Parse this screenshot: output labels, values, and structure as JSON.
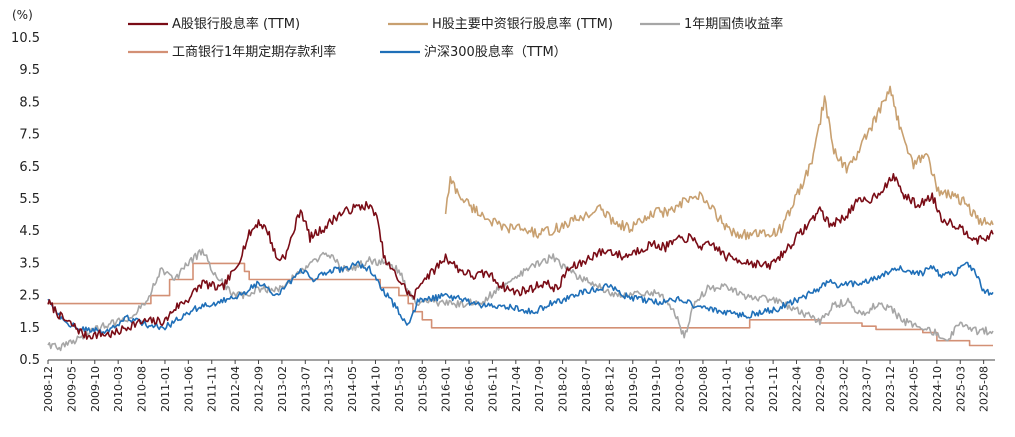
{
  "chart_data": {
    "type": "line",
    "unit_label": "(%)",
    "y_ticks": [
      "0.5",
      "1.5",
      "2.5",
      "3.5",
      "4.5",
      "5.5",
      "6.5",
      "7.5",
      "8.5",
      "9.5",
      "10.5"
    ],
    "ylim": [
      0.5,
      10.5
    ],
    "x_tick_labels": [
      "2008-12",
      "2009-05",
      "2009-10",
      "2010-03",
      "2010-08",
      "2011-01",
      "2011-06",
      "2011-11",
      "2012-04",
      "2012-09",
      "2013-02",
      "2013-07",
      "2013-12",
      "2014-05",
      "2014-10",
      "2015-03",
      "2015-08",
      "2016-01",
      "2016-06",
      "2016-11",
      "2017-04",
      "2017-09",
      "2018-02",
      "2018-07",
      "2018-12",
      "2019-05",
      "2019-10",
      "2020-03",
      "2020-08",
      "2021-01",
      "2021-06",
      "2021-11",
      "2022-04",
      "2022-09",
      "2023-02",
      "2023-07",
      "2023-12",
      "2024-05",
      "2024-10",
      "2025-03",
      "2025-08"
    ],
    "xlim": [
      "2008-12",
      "2025-10"
    ],
    "grid": false,
    "legend_position": "top",
    "series": [
      {
        "name": "A股银行股息率 (TTM)",
        "color": "#7a0c16",
        "points": [
          [
            "2008-12",
            2.3
          ],
          [
            "2009-03",
            1.8
          ],
          [
            "2009-06",
            1.5
          ],
          [
            "2009-08",
            1.25
          ],
          [
            "2009-11",
            1.3
          ],
          [
            "2010-02",
            1.3
          ],
          [
            "2010-06",
            1.6
          ],
          [
            "2010-09",
            1.7
          ],
          [
            "2011-01",
            1.7
          ],
          [
            "2011-03",
            2.1
          ],
          [
            "2011-06",
            2.4
          ],
          [
            "2011-09",
            2.9
          ],
          [
            "2012-01",
            2.7
          ],
          [
            "2012-04",
            3.3
          ],
          [
            "2012-07",
            4.4
          ],
          [
            "2012-09",
            4.8
          ],
          [
            "2012-11",
            4.5
          ],
          [
            "2013-01",
            3.6
          ],
          [
            "2013-03",
            3.8
          ],
          [
            "2013-06",
            5.2
          ],
          [
            "2013-08",
            4.3
          ],
          [
            "2013-11",
            4.6
          ],
          [
            "2014-02",
            5.0
          ],
          [
            "2014-05",
            5.2
          ],
          [
            "2014-08",
            5.3
          ],
          [
            "2014-10",
            5.1
          ],
          [
            "2014-12",
            3.6
          ],
          [
            "2015-03",
            3.0
          ],
          [
            "2015-06",
            2.4
          ],
          [
            "2015-08",
            3.0
          ],
          [
            "2015-10",
            3.2
          ],
          [
            "2016-01",
            3.7
          ],
          [
            "2016-04",
            3.3
          ],
          [
            "2016-07",
            3.1
          ],
          [
            "2016-10",
            3.2
          ],
          [
            "2017-01",
            2.8
          ],
          [
            "2017-04",
            2.6
          ],
          [
            "2017-07",
            2.7
          ],
          [
            "2017-10",
            2.9
          ],
          [
            "2018-01",
            2.7
          ],
          [
            "2018-03",
            3.3
          ],
          [
            "2018-06",
            3.5
          ],
          [
            "2018-09",
            3.8
          ],
          [
            "2018-12",
            3.9
          ],
          [
            "2019-03",
            3.7
          ],
          [
            "2019-06",
            3.9
          ],
          [
            "2019-09",
            4.1
          ],
          [
            "2019-12",
            4.0
          ],
          [
            "2020-02",
            4.2
          ],
          [
            "2020-05",
            4.3
          ],
          [
            "2020-08",
            4.0
          ],
          [
            "2020-10",
            4.1
          ],
          [
            "2021-01",
            3.7
          ],
          [
            "2021-04",
            3.6
          ],
          [
            "2021-07",
            3.5
          ],
          [
            "2021-10",
            3.4
          ],
          [
            "2022-01",
            3.8
          ],
          [
            "2022-04",
            4.3
          ],
          [
            "2022-07",
            4.8
          ],
          [
            "2022-09",
            5.2
          ],
          [
            "2022-11",
            4.7
          ],
          [
            "2023-02",
            4.9
          ],
          [
            "2023-05",
            5.4
          ],
          [
            "2023-08",
            5.5
          ],
          [
            "2023-11",
            5.9
          ],
          [
            "2024-01",
            6.2
          ],
          [
            "2024-03",
            5.6
          ],
          [
            "2024-06",
            5.3
          ],
          [
            "2024-09",
            5.6
          ],
          [
            "2024-11",
            4.9
          ],
          [
            "2025-02",
            4.7
          ],
          [
            "2025-05",
            4.4
          ],
          [
            "2025-07",
            4.2
          ],
          [
            "2025-10",
            4.4
          ]
        ]
      },
      {
        "name": "H股主要中资银行股息率 (TTM)",
        "color": "#c8a070",
        "points": [
          [
            "2016-01",
            5.1
          ],
          [
            "2016-02",
            6.1
          ],
          [
            "2016-04",
            5.6
          ],
          [
            "2016-07",
            5.2
          ],
          [
            "2016-10",
            4.9
          ],
          [
            "2017-01",
            4.6
          ],
          [
            "2017-05",
            4.6
          ],
          [
            "2017-09",
            4.4
          ],
          [
            "2018-01",
            4.6
          ],
          [
            "2018-04",
            4.8
          ],
          [
            "2018-07",
            5.0
          ],
          [
            "2018-10",
            5.2
          ],
          [
            "2019-01",
            4.8
          ],
          [
            "2019-04",
            4.6
          ],
          [
            "2019-07",
            4.8
          ],
          [
            "2019-10",
            5.1
          ],
          [
            "2020-01",
            5.1
          ],
          [
            "2020-04",
            5.4
          ],
          [
            "2020-07",
            5.6
          ],
          [
            "2020-10",
            5.2
          ],
          [
            "2021-01",
            4.6
          ],
          [
            "2021-04",
            4.4
          ],
          [
            "2021-07",
            4.4
          ],
          [
            "2021-10",
            4.4
          ],
          [
            "2022-01",
            4.6
          ],
          [
            "2022-04",
            5.6
          ],
          [
            "2022-07",
            6.5
          ],
          [
            "2022-10",
            8.6
          ],
          [
            "2022-12",
            7.0
          ],
          [
            "2023-03",
            6.4
          ],
          [
            "2023-06",
            7.2
          ],
          [
            "2023-09",
            8.0
          ],
          [
            "2023-12",
            8.9
          ],
          [
            "2024-02",
            7.8
          ],
          [
            "2024-05",
            6.6
          ],
          [
            "2024-08",
            6.9
          ],
          [
            "2024-10",
            5.8
          ],
          [
            "2025-01",
            5.6
          ],
          [
            "2025-04",
            5.4
          ],
          [
            "2025-07",
            4.8
          ],
          [
            "2025-10",
            4.7
          ]
        ]
      },
      {
        "name": "1年期国债收益率",
        "color": "#a6a6a6",
        "points": [
          [
            "2008-12",
            1.0
          ],
          [
            "2009-03",
            0.9
          ],
          [
            "2009-06",
            1.1
          ],
          [
            "2009-09",
            1.4
          ],
          [
            "2010-01",
            1.6
          ],
          [
            "2010-05",
            1.8
          ],
          [
            "2010-09",
            2.3
          ],
          [
            "2010-12",
            3.3
          ],
          [
            "2011-03",
            3.0
          ],
          [
            "2011-06",
            3.5
          ],
          [
            "2011-09",
            3.9
          ],
          [
            "2011-12",
            3.1
          ],
          [
            "2012-03",
            2.6
          ],
          [
            "2012-06",
            2.5
          ],
          [
            "2012-09",
            2.7
          ],
          [
            "2013-01",
            2.7
          ],
          [
            "2013-06",
            3.2
          ],
          [
            "2013-09",
            3.6
          ],
          [
            "2013-12",
            3.8
          ],
          [
            "2014-03",
            3.3
          ],
          [
            "2014-06",
            3.4
          ],
          [
            "2014-09",
            3.6
          ],
          [
            "2014-12",
            3.5
          ],
          [
            "2015-03",
            3.3
          ],
          [
            "2015-06",
            2.3
          ],
          [
            "2015-09",
            2.3
          ],
          [
            "2015-12",
            2.3
          ],
          [
            "2016-03",
            2.2
          ],
          [
            "2016-06",
            2.3
          ],
          [
            "2016-09",
            2.3
          ],
          [
            "2016-12",
            2.7
          ],
          [
            "2017-03",
            2.9
          ],
          [
            "2017-06",
            3.3
          ],
          [
            "2017-09",
            3.5
          ],
          [
            "2017-12",
            3.7
          ],
          [
            "2018-03",
            3.3
          ],
          [
            "2018-06",
            3.0
          ],
          [
            "2018-09",
            2.9
          ],
          [
            "2018-12",
            2.6
          ],
          [
            "2019-03",
            2.5
          ],
          [
            "2019-06",
            2.6
          ],
          [
            "2019-09",
            2.6
          ],
          [
            "2019-12",
            2.4
          ],
          [
            "2020-02",
            2.0
          ],
          [
            "2020-04",
            1.2
          ],
          [
            "2020-06",
            2.2
          ],
          [
            "2020-09",
            2.7
          ],
          [
            "2020-12",
            2.8
          ],
          [
            "2021-03",
            2.6
          ],
          [
            "2021-06",
            2.4
          ],
          [
            "2021-09",
            2.4
          ],
          [
            "2021-12",
            2.3
          ],
          [
            "2022-03",
            2.1
          ],
          [
            "2022-06",
            1.9
          ],
          [
            "2022-09",
            1.7
          ],
          [
            "2022-12",
            2.2
          ],
          [
            "2023-03",
            2.3
          ],
          [
            "2023-06",
            1.9
          ],
          [
            "2023-09",
            2.2
          ],
          [
            "2023-12",
            2.1
          ],
          [
            "2024-03",
            1.7
          ],
          [
            "2024-06",
            1.5
          ],
          [
            "2024-09",
            1.4
          ],
          [
            "2024-12",
            1.1
          ],
          [
            "2025-03",
            1.6
          ],
          [
            "2025-06",
            1.4
          ],
          [
            "2025-10",
            1.4
          ]
        ]
      },
      {
        "name": "工商银行1年期定期存款利率",
        "color": "#d39075",
        "step": true,
        "points": [
          [
            "2008-12",
            2.25
          ],
          [
            "2010-10",
            2.5
          ],
          [
            "2011-02",
            3.0
          ],
          [
            "2011-07",
            3.5
          ],
          [
            "2012-06",
            3.25
          ],
          [
            "2012-07",
            3.0
          ],
          [
            "2014-11",
            2.75
          ],
          [
            "2015-03",
            2.5
          ],
          [
            "2015-05",
            2.25
          ],
          [
            "2015-06",
            2.0
          ],
          [
            "2015-08",
            1.75
          ],
          [
            "2015-10",
            1.5
          ],
          [
            "2021-06",
            1.75
          ],
          [
            "2022-09",
            1.65
          ],
          [
            "2023-06",
            1.55
          ],
          [
            "2023-09",
            1.45
          ],
          [
            "2024-07",
            1.35
          ],
          [
            "2024-10",
            1.1
          ],
          [
            "2025-05",
            0.95
          ],
          [
            "2025-10",
            0.95
          ]
        ]
      },
      {
        "name": "沪深300股息率（TTM）",
        "color": "#1f6fb8",
        "points": [
          [
            "2008-12",
            2.4
          ],
          [
            "2009-03",
            1.8
          ],
          [
            "2009-06",
            1.5
          ],
          [
            "2009-09",
            1.4
          ],
          [
            "2010-01",
            1.4
          ],
          [
            "2010-05",
            1.8
          ],
          [
            "2010-09",
            1.6
          ],
          [
            "2011-01",
            1.5
          ],
          [
            "2011-05",
            1.9
          ],
          [
            "2011-09",
            2.2
          ],
          [
            "2012-01",
            2.3
          ],
          [
            "2012-05",
            2.5
          ],
          [
            "2012-09",
            2.9
          ],
          [
            "2013-01",
            2.5
          ],
          [
            "2013-06",
            3.3
          ],
          [
            "2013-09",
            3.0
          ],
          [
            "2013-12",
            3.3
          ],
          [
            "2014-03",
            3.3
          ],
          [
            "2014-06",
            3.5
          ],
          [
            "2014-09",
            3.3
          ],
          [
            "2014-12",
            2.6
          ],
          [
            "2015-03",
            2.0
          ],
          [
            "2015-05",
            1.6
          ],
          [
            "2015-07",
            2.3
          ],
          [
            "2015-10",
            2.4
          ],
          [
            "2016-01",
            2.5
          ],
          [
            "2016-04",
            2.4
          ],
          [
            "2016-08",
            2.2
          ],
          [
            "2016-12",
            2.2
          ],
          [
            "2017-04",
            2.1
          ],
          [
            "2017-08",
            2.0
          ],
          [
            "2017-12",
            2.3
          ],
          [
            "2018-03",
            2.4
          ],
          [
            "2018-06",
            2.6
          ],
          [
            "2018-09",
            2.7
          ],
          [
            "2018-12",
            2.8
          ],
          [
            "2019-03",
            2.5
          ],
          [
            "2019-06",
            2.4
          ],
          [
            "2019-09",
            2.3
          ],
          [
            "2019-12",
            2.3
          ],
          [
            "2020-03",
            2.4
          ],
          [
            "2020-06",
            2.2
          ],
          [
            "2020-09",
            2.1
          ],
          [
            "2020-12",
            2.0
          ],
          [
            "2021-03",
            1.9
          ],
          [
            "2021-06",
            1.9
          ],
          [
            "2021-09",
            2.0
          ],
          [
            "2021-12",
            2.1
          ],
          [
            "2022-03",
            2.3
          ],
          [
            "2022-06",
            2.5
          ],
          [
            "2022-09",
            2.7
          ],
          [
            "2022-11",
            3.0
          ],
          [
            "2023-01",
            2.8
          ],
          [
            "2023-05",
            2.9
          ],
          [
            "2023-08",
            3.0
          ],
          [
            "2023-11",
            3.2
          ],
          [
            "2024-01",
            3.4
          ],
          [
            "2024-04",
            3.2
          ],
          [
            "2024-07",
            3.2
          ],
          [
            "2024-09",
            3.4
          ],
          [
            "2024-11",
            3.1
          ],
          [
            "2025-02",
            3.2
          ],
          [
            "2025-04",
            3.5
          ],
          [
            "2025-06",
            3.3
          ],
          [
            "2025-08",
            2.6
          ],
          [
            "2025-10",
            2.6
          ]
        ]
      }
    ]
  }
}
